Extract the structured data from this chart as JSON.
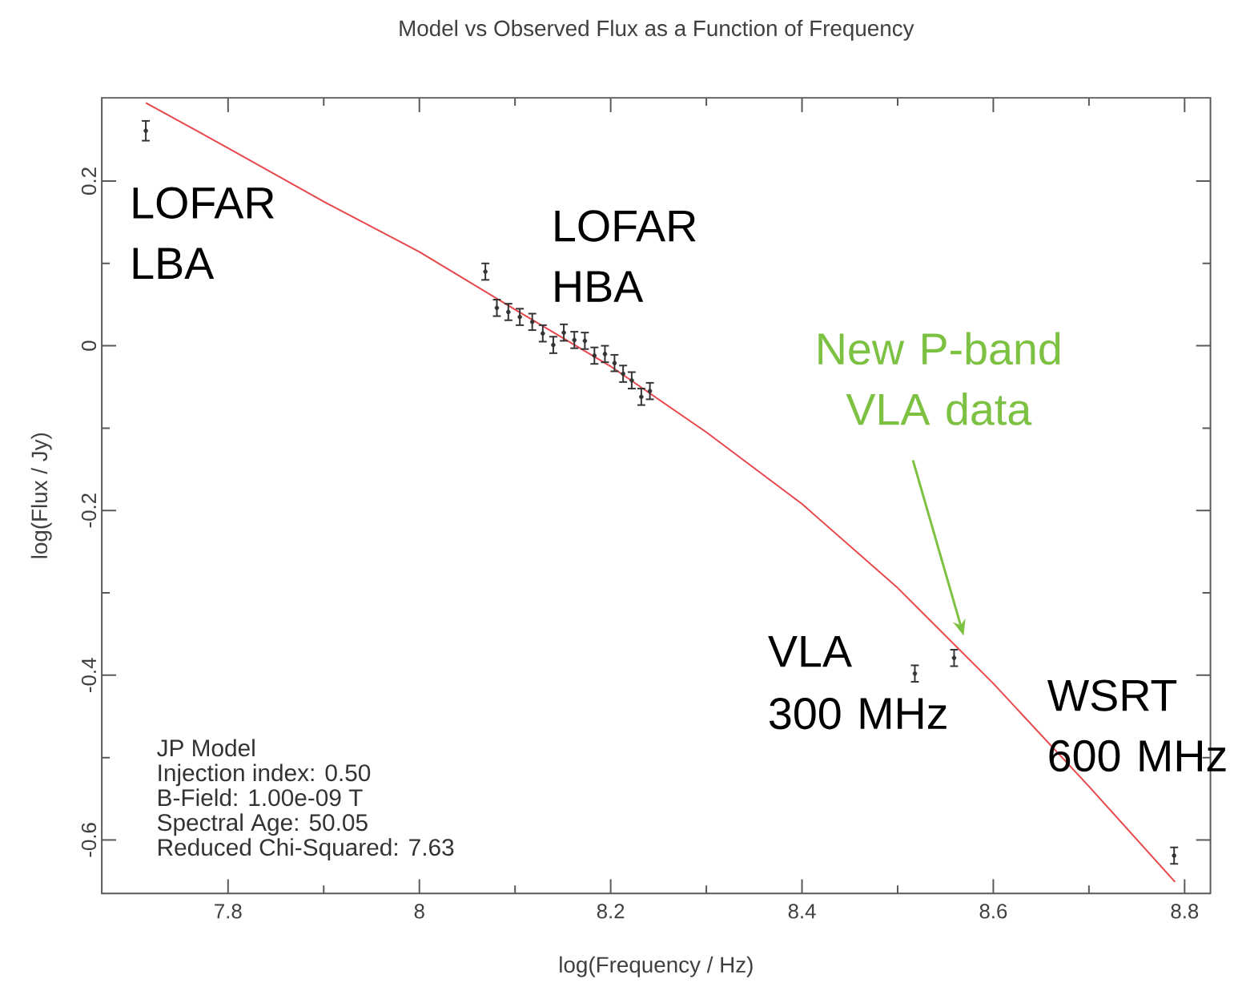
{
  "chart_data": {
    "type": "scatter",
    "title": "Model vs Observed Flux as a Function of Frequency",
    "xlabel": "log(Frequency / Hz)",
    "ylabel": "log(Flux / Jy)",
    "xlim": [
      7.668,
      8.827
    ],
    "ylim": [
      -0.665,
      0.301
    ],
    "xticks": [
      7.8,
      8,
      8.2,
      8.4,
      8.6,
      8.8
    ],
    "yticks": [
      -0.6,
      -0.4,
      -0.2,
      0,
      0.2
    ],
    "grid": false,
    "series": [
      {
        "type": "line",
        "color": "#e8474a",
        "x": [
          7.714,
          7.8,
          7.9,
          8.0,
          8.1,
          8.2,
          8.3,
          8.4,
          8.5,
          8.6,
          8.7,
          8.79
        ],
        "values": [
          0.295,
          0.24,
          0.175,
          0.114,
          0.044,
          -0.025,
          -0.105,
          -0.192,
          -0.294,
          -0.41,
          -0.535,
          -0.651
        ]
      },
      {
        "color": "#333333",
        "x": [
          7.714,
          8.069,
          8.081,
          8.093,
          8.105,
          8.118,
          8.129,
          8.14,
          8.151,
          8.162,
          8.173,
          8.183,
          8.194,
          8.204,
          8.213,
          8.222,
          8.232,
          8.241,
          8.518,
          8.559,
          8.789
        ],
        "values": [
          0.261,
          0.09,
          0.046,
          0.041,
          0.035,
          0.029,
          0.015,
          0.001,
          0.016,
          0.007,
          0.006,
          -0.012,
          -0.01,
          -0.021,
          -0.034,
          -0.042,
          -0.062,
          -0.055,
          -0.398,
          -0.379,
          -0.619
        ],
        "errors": [
          0.012,
          0.01,
          0.01,
          0.01,
          0.01,
          0.01,
          0.01,
          0.01,
          0.01,
          0.01,
          0.01,
          0.01,
          0.01,
          0.01,
          0.01,
          0.01,
          0.01,
          0.01,
          0.01,
          0.01,
          0.01
        ]
      }
    ],
    "annotations": [
      "LOFAR LBA",
      "LOFAR HBA",
      "New P-band VLA data",
      "VLA",
      "300 MHz",
      "WSRT 600 MHz",
      "JP Model",
      "Injection index: 0.50",
      "B-Field: 1.00e-09 T",
      "Spectral Age: 50.05",
      "Reduced Chi-Squared: 7.63"
    ]
  }
}
